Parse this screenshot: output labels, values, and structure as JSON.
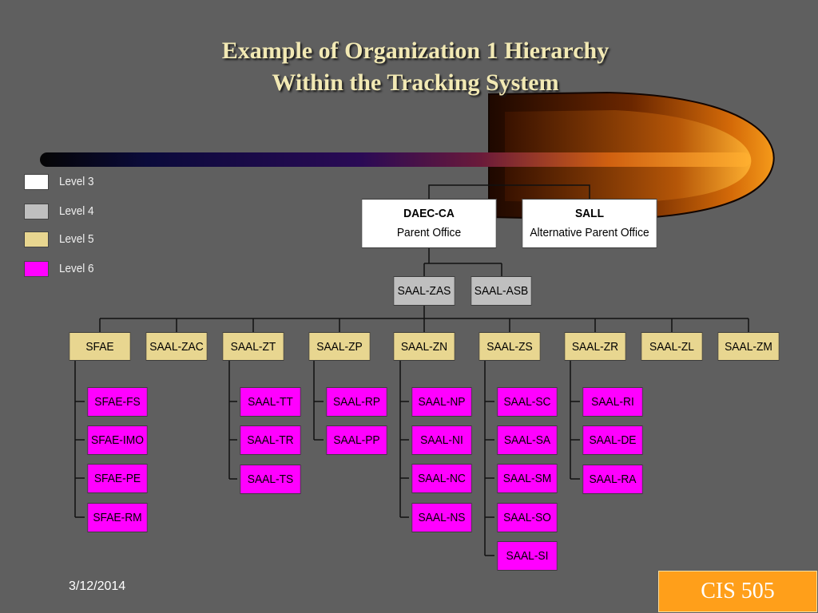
{
  "slide": {
    "title_line1": "Example of Organization 1  Hierarchy",
    "title_line2": "Within the Tracking System",
    "date": "3/12/2014",
    "course": "CIS 505"
  },
  "legend": [
    {
      "label": "Level 3",
      "color": "#ffffff"
    },
    {
      "label": "Level 4",
      "color": "#bfbfbf"
    },
    {
      "label": "Level 5",
      "color": "#e8d690"
    },
    {
      "label": "Level 6",
      "color": "#ff00ff"
    }
  ],
  "colors": {
    "level3": "#ffffff",
    "level4": "#bfbfbf",
    "level5": "#e8d690",
    "level6": "#ff00ff",
    "background": "#5f5f5f",
    "title": "#f2e9b4",
    "badge": "#ff9f1a"
  },
  "hierarchy": {
    "level3": [
      {
        "name": "DAEC-CA",
        "role": "Parent Office"
      },
      {
        "name": "SALL",
        "role": "Alternative Parent Office"
      }
    ],
    "level4": [
      "SAAL-ZAS",
      "SAAL-ASB"
    ],
    "level5": [
      "SFAE",
      "SAAL-ZAC",
      "SAAL-ZT",
      "SAAL-ZP",
      "SAAL-ZN",
      "SAAL-ZS",
      "SAAL-ZR",
      "SAAL-ZL",
      "SAAL-ZM"
    ],
    "level6": {
      "SFAE": [
        "SFAE-FS",
        "SFAE-IMO",
        "SFAE-PE",
        "SFAE-RM"
      ],
      "SAAL-ZT": [
        "SAAL-TT",
        "SAAL-TR",
        "SAAL-TS"
      ],
      "SAAL-ZP": [
        "SAAL-RP",
        "SAAL-PP"
      ],
      "SAAL-ZN": [
        "SAAL-NP",
        "SAAL-NI",
        "SAAL-NC",
        "SAAL-NS"
      ],
      "SAAL-ZS": [
        "SAAL-SC",
        "SAAL-SA",
        "SAAL-SM",
        "SAAL-SO",
        "SAAL-SI"
      ],
      "SAAL-ZR": [
        "SAAL-RI",
        "SAAL-DE",
        "SAAL-RA"
      ]
    }
  }
}
